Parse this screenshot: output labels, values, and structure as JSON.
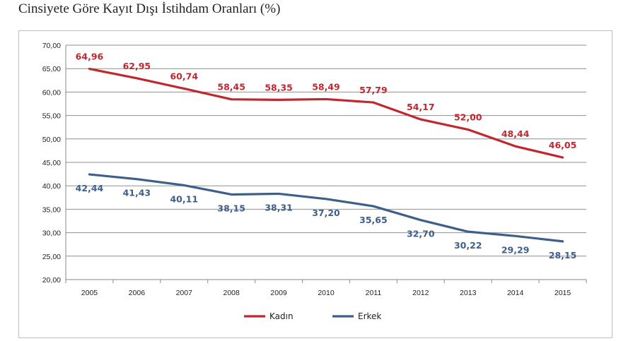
{
  "page": {
    "title": "Cinsiyete Göre Kayıt Dışı İstihdam Oranları (%)"
  },
  "chart_data": {
    "type": "line",
    "x": [
      "2005",
      "2006",
      "2007",
      "2008",
      "2009",
      "2010",
      "2011",
      "2012",
      "2013",
      "2014",
      "2015"
    ],
    "series": [
      {
        "name": "Kadın",
        "color": "#c0282d",
        "values": [
          64.96,
          62.95,
          60.74,
          58.45,
          58.35,
          58.49,
          57.79,
          54.17,
          52.0,
          48.44,
          46.05
        ],
        "labels": [
          "64,96",
          "62,95",
          "60,74",
          "58,45",
          "58,35",
          "58,49",
          "57,79",
          "54,17",
          "52,00",
          "48,44",
          "46,05"
        ]
      },
      {
        "name": "Erkek",
        "color": "#3e5f8a",
        "values": [
          42.44,
          41.43,
          40.11,
          38.15,
          38.31,
          37.2,
          35.65,
          32.7,
          30.22,
          29.29,
          28.15
        ],
        "labels": [
          "42,44",
          "41,43",
          "40,11",
          "38,15",
          "38,31",
          "37,20",
          "35,65",
          "32,70",
          "30,22",
          "29,29",
          "28,15"
        ]
      }
    ],
    "ylim": [
      20,
      70
    ],
    "yticks": [
      "20,00",
      "25,00",
      "30,00",
      "35,00",
      "40,00",
      "45,00",
      "50,00",
      "55,00",
      "60,00",
      "65,00",
      "70,00"
    ],
    "grid": true,
    "legend": "bottom"
  }
}
